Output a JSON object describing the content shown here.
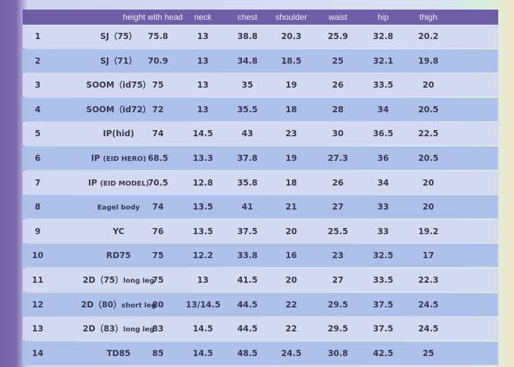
{
  "table": {
    "headers": [
      "height with head",
      "neck",
      "chest",
      "shoulder",
      "waist",
      "hip",
      "thigh"
    ],
    "rows": [
      {
        "no": "1",
        "name": "SJ（75）",
        "name_small": "",
        "height": "75.8",
        "neck": "13",
        "chest": "38.8",
        "shoulder": "20.3",
        "waist": "25.9",
        "hip": "32.8",
        "thigh": "20.2"
      },
      {
        "no": "2",
        "name": "SJ（71）",
        "name_small": "",
        "height": "70.9",
        "neck": "13",
        "chest": "34.8",
        "shoulder": "18.5",
        "waist": "25",
        "hip": "32.1",
        "thigh": "19.8"
      },
      {
        "no": "3",
        "name": "SOOM（id75）",
        "name_small": "",
        "height": "75",
        "neck": "13",
        "chest": "35",
        "shoulder": "19",
        "waist": "26",
        "hip": "33.5",
        "thigh": "20"
      },
      {
        "no": "4",
        "name": "SOOM（id72）",
        "name_small": "",
        "height": "72",
        "neck": "13",
        "chest": "35.5",
        "shoulder": "18",
        "waist": "28",
        "hip": "34",
        "thigh": "20.5"
      },
      {
        "no": "5",
        "name": "IP(hid)",
        "name_small": "",
        "height": "74",
        "neck": "14.5",
        "chest": "43",
        "shoulder": "23",
        "waist": "30",
        "hip": "36.5",
        "thigh": "22.5"
      },
      {
        "no": "6",
        "name": "IP ",
        "name_small": "(EID HERO)",
        "height": "68.5",
        "neck": "13.3",
        "chest": "37.8",
        "shoulder": "19",
        "waist": "27.3",
        "hip": "36",
        "thigh": "20.5"
      },
      {
        "no": "7",
        "name": "IP ",
        "name_small": "(EID MODEL)",
        "height": "70.5",
        "neck": "12.8",
        "chest": "35.8",
        "shoulder": "18",
        "waist": "26",
        "hip": "34",
        "thigh": "20"
      },
      {
        "no": "8",
        "name": "",
        "name_small": "Eagel body",
        "height": "74",
        "neck": "13.5",
        "chest": "41",
        "shoulder": "21",
        "waist": "27",
        "hip": "33",
        "thigh": "20"
      },
      {
        "no": "9",
        "name": "YC",
        "name_small": "",
        "height": "76",
        "neck": "13.5",
        "chest": "37.5",
        "shoulder": "20",
        "waist": "25.5",
        "hip": "33",
        "thigh": "19.2"
      },
      {
        "no": "10",
        "name": "RD75",
        "name_small": "",
        "height": "75",
        "neck": "12.2",
        "chest": "33.8",
        "shoulder": "16",
        "waist": "23",
        "hip": "32.5",
        "thigh": "17"
      },
      {
        "no": "11",
        "name": "2D（75）",
        "name_small": "long leg",
        "height": "75",
        "neck": "13",
        "chest": "41.5",
        "shoulder": "20",
        "waist": "27",
        "hip": "33.5",
        "thigh": "22.3"
      },
      {
        "no": "12",
        "name": "2D（80）",
        "name_small": "short leg",
        "height": "80",
        "neck": "13/14.5",
        "chest": "44.5",
        "shoulder": "22",
        "waist": "29.5",
        "hip": "37.5",
        "thigh": "24.5"
      },
      {
        "no": "13",
        "name": "2D（83）",
        "name_small": "long leg",
        "height": "83",
        "neck": "14.5",
        "chest": "44.5",
        "shoulder": "22",
        "waist": "29.5",
        "hip": "37.5",
        "thigh": "24.5"
      },
      {
        "no": "14",
        "name": "TD85",
        "name_small": "",
        "height": "85",
        "neck": "14.5",
        "chest": "48.5",
        "shoulder": "24.5",
        "waist": "30.8",
        "hip": "42.5",
        "thigh": "25"
      }
    ]
  },
  "colors": {
    "header_bg": "#6e5ea8",
    "row_light": "#d3d9f3",
    "row_dark": "#adc0ea",
    "text": "#3b3856"
  }
}
